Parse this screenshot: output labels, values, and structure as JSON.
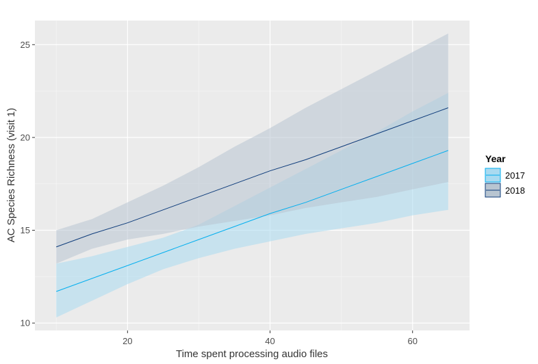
{
  "chart_data": {
    "type": "line",
    "xlabel": "Time spent processing audio files",
    "ylabel": "AC Species Richness  (visit 1)",
    "xlim": [
      7,
      68
    ],
    "ylim": [
      9.6,
      26.3
    ],
    "x_ticks": [
      20,
      40,
      60
    ],
    "y_ticks": [
      10,
      15,
      20,
      25
    ],
    "grid": true,
    "legend": {
      "title": "Year",
      "position": "right"
    },
    "series": [
      {
        "name": "2017",
        "color": "#00aeef",
        "band_color": "#a9daf0",
        "x": [
          10,
          15,
          20,
          25,
          30,
          35,
          40,
          45,
          50,
          55,
          60,
          65
        ],
        "y": [
          11.7,
          12.4,
          13.1,
          13.8,
          14.5,
          15.2,
          15.9,
          16.5,
          17.2,
          17.9,
          18.6,
          19.3
        ],
        "lower": [
          10.3,
          11.2,
          12.1,
          12.9,
          13.5,
          14.0,
          14.4,
          14.8,
          15.1,
          15.4,
          15.8,
          16.1
        ],
        "upper": [
          13.2,
          13.6,
          14.1,
          14.6,
          15.3,
          16.3,
          17.3,
          18.3,
          19.3,
          20.3,
          21.4,
          22.4
        ]
      },
      {
        "name": "2018",
        "color": "#0d3b7a",
        "band_color": "#b8c5d1",
        "x": [
          10,
          15,
          20,
          25,
          30,
          35,
          40,
          45,
          50,
          55,
          60,
          65
        ],
        "y": [
          14.1,
          14.8,
          15.4,
          16.1,
          16.8,
          17.5,
          18.2,
          18.8,
          19.5,
          20.2,
          20.9,
          21.6
        ],
        "lower": [
          13.2,
          14.0,
          14.5,
          14.8,
          15.2,
          15.5,
          15.8,
          16.2,
          16.5,
          16.8,
          17.2,
          17.6
        ],
        "upper": [
          15.0,
          15.6,
          16.5,
          17.4,
          18.4,
          19.5,
          20.5,
          21.6,
          22.6,
          23.6,
          24.6,
          25.6
        ]
      }
    ]
  }
}
